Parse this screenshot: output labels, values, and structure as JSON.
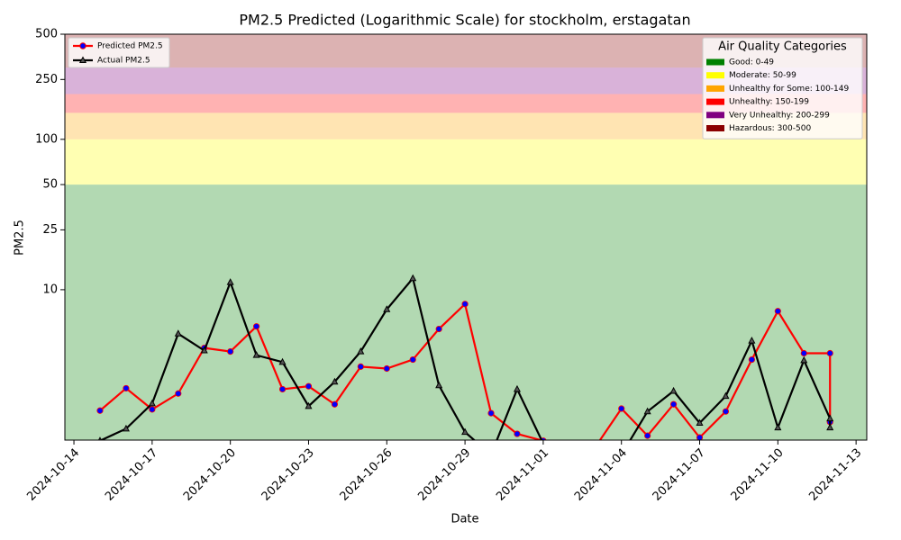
{
  "chart_data": {
    "type": "line",
    "title": "PM2.5 Predicted (Logarithmic Scale) for stockholm, erstagatan",
    "x_label": "Date",
    "y_label": "PM2.5",
    "log_scale": true,
    "x": [
      "2024-10-15",
      "2024-10-16",
      "2024-10-17",
      "2024-10-18",
      "2024-10-19",
      "2024-10-20",
      "2024-10-21",
      "2024-10-22",
      "2024-10-23",
      "2024-10-24",
      "2024-10-25",
      "2024-10-26",
      "2024-10-27",
      "2024-10-28",
      "2024-10-29",
      "2024-10-30",
      "2024-10-31",
      "2024-11-01",
      "2024-11-02",
      "2024-11-03",
      "2024-11-04",
      "2024-11-05",
      "2024-11-06",
      "2024-11-07",
      "2024-11-08",
      "2024-11-09",
      "2024-11-10",
      "2024-11-11",
      "2024-11-12",
      "2024-11-12"
    ],
    "series": [
      {
        "name": "Predicted PM2.5",
        "color": "red",
        "marker": "circle",
        "marker_color": "blue",
        "values": [
          1.57,
          2.21,
          1.6,
          2.04,
          4.1,
          3.88,
          5.7,
          2.18,
          2.28,
          1.73,
          3.08,
          2.99,
          3.43,
          5.48,
          8.03,
          1.51,
          1.1,
          0.99,
          0.8,
          0.9,
          1.62,
          1.07,
          1.73,
          1.04,
          1.55,
          3.43,
          7.2,
          3.78,
          3.78,
          1.32
        ]
      },
      {
        "name": "Actual PM2.5",
        "color": "black",
        "marker": "triangle",
        "marker_color": "#555555",
        "values": [
          0.99,
          1.19,
          1.75,
          5.1,
          3.94,
          11.2,
          3.67,
          3.3,
          1.68,
          2.44,
          3.88,
          7.4,
          11.9,
          2.31,
          1.13,
          0.8,
          2.18,
          0.95,
          0.6,
          0.6,
          0.8,
          1.55,
          2.12,
          1.3,
          1.96,
          4.58,
          1.21,
          3.39,
          1.39,
          1.21
        ]
      }
    ],
    "xlim": [
      "2024-10-13T15:40",
      "2024-11-13T09:50"
    ],
    "xticks": [
      "2024-10-14",
      "2024-10-17",
      "2024-10-20",
      "2024-10-23",
      "2024-10-26",
      "2024-10-29",
      "2024-11-01",
      "2024-11-04",
      "2024-11-07",
      "2024-11-10",
      "2024-11-13"
    ],
    "ylim": [
      1,
      500
    ],
    "yticks": [
      10,
      25,
      50,
      100,
      250,
      500
    ],
    "legend": "upper left",
    "bands_legend": "upper right",
    "bands_title": "Air Quality Categories",
    "bands": [
      {
        "label": "Good: 0-49",
        "color": "green",
        "range": [
          0,
          50
        ]
      },
      {
        "label": "Moderate: 50-99",
        "color": "yellow",
        "range": [
          50,
          100
        ]
      },
      {
        "label": "Unhealthy for Some: 100-149",
        "color": "orange",
        "range": [
          100,
          150
        ]
      },
      {
        "label": "Unhealthy: 150-199",
        "color": "red",
        "range": [
          150,
          200
        ]
      },
      {
        "label": "Very Unhealthy: 200-299",
        "color": "purple",
        "range": [
          200,
          300
        ]
      },
      {
        "label": "Hazardous: 300-500",
        "color": "darkred",
        "range": [
          300,
          500
        ]
      }
    ]
  }
}
